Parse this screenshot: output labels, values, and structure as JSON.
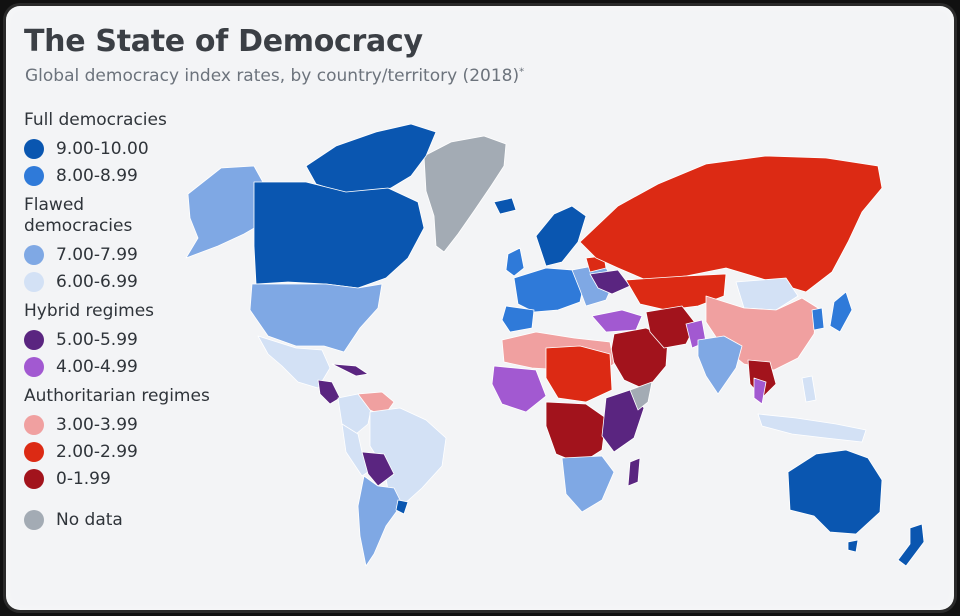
{
  "title": "The State of Democracy",
  "subtitle": "Global democracy index rates, by country/territory (2018)",
  "subtitle_note": "*",
  "colors": {
    "full_9": "#0a56b0",
    "full_8": "#2f7ad9",
    "flawed_7": "#7fa8e4",
    "flawed_6": "#d3e1f5",
    "hybrid_5": "#5a2580",
    "hybrid_4": "#a259d1",
    "auth_3": "#f0a0a0",
    "auth_2": "#dc2a14",
    "auth_0": "#a2131c",
    "nodata": "#a3abb4"
  },
  "legend": {
    "groups": [
      {
        "title": "Full democracies",
        "items": [
          {
            "label": "9.00-10.00",
            "color_key": "full_9"
          },
          {
            "label": "8.00-8.99",
            "color_key": "full_8"
          }
        ]
      },
      {
        "title": "Flawed democracies",
        "items": [
          {
            "label": "7.00-7.99",
            "color_key": "flawed_7"
          },
          {
            "label": "6.00-6.99",
            "color_key": "flawed_6"
          }
        ]
      },
      {
        "title": "Hybrid regimes",
        "items": [
          {
            "label": "5.00-5.99",
            "color_key": "hybrid_5"
          },
          {
            "label": "4.00-4.99",
            "color_key": "hybrid_4"
          }
        ]
      },
      {
        "title": "Authoritarian regimes",
        "items": [
          {
            "label": "3.00-3.99",
            "color_key": "auth_3"
          },
          {
            "label": "2.00-2.99",
            "color_key": "auth_2"
          },
          {
            "label": "0-1.99",
            "color_key": "auth_0"
          }
        ]
      }
    ],
    "nodata": {
      "label": "No data",
      "color_key": "nodata"
    }
  }
}
